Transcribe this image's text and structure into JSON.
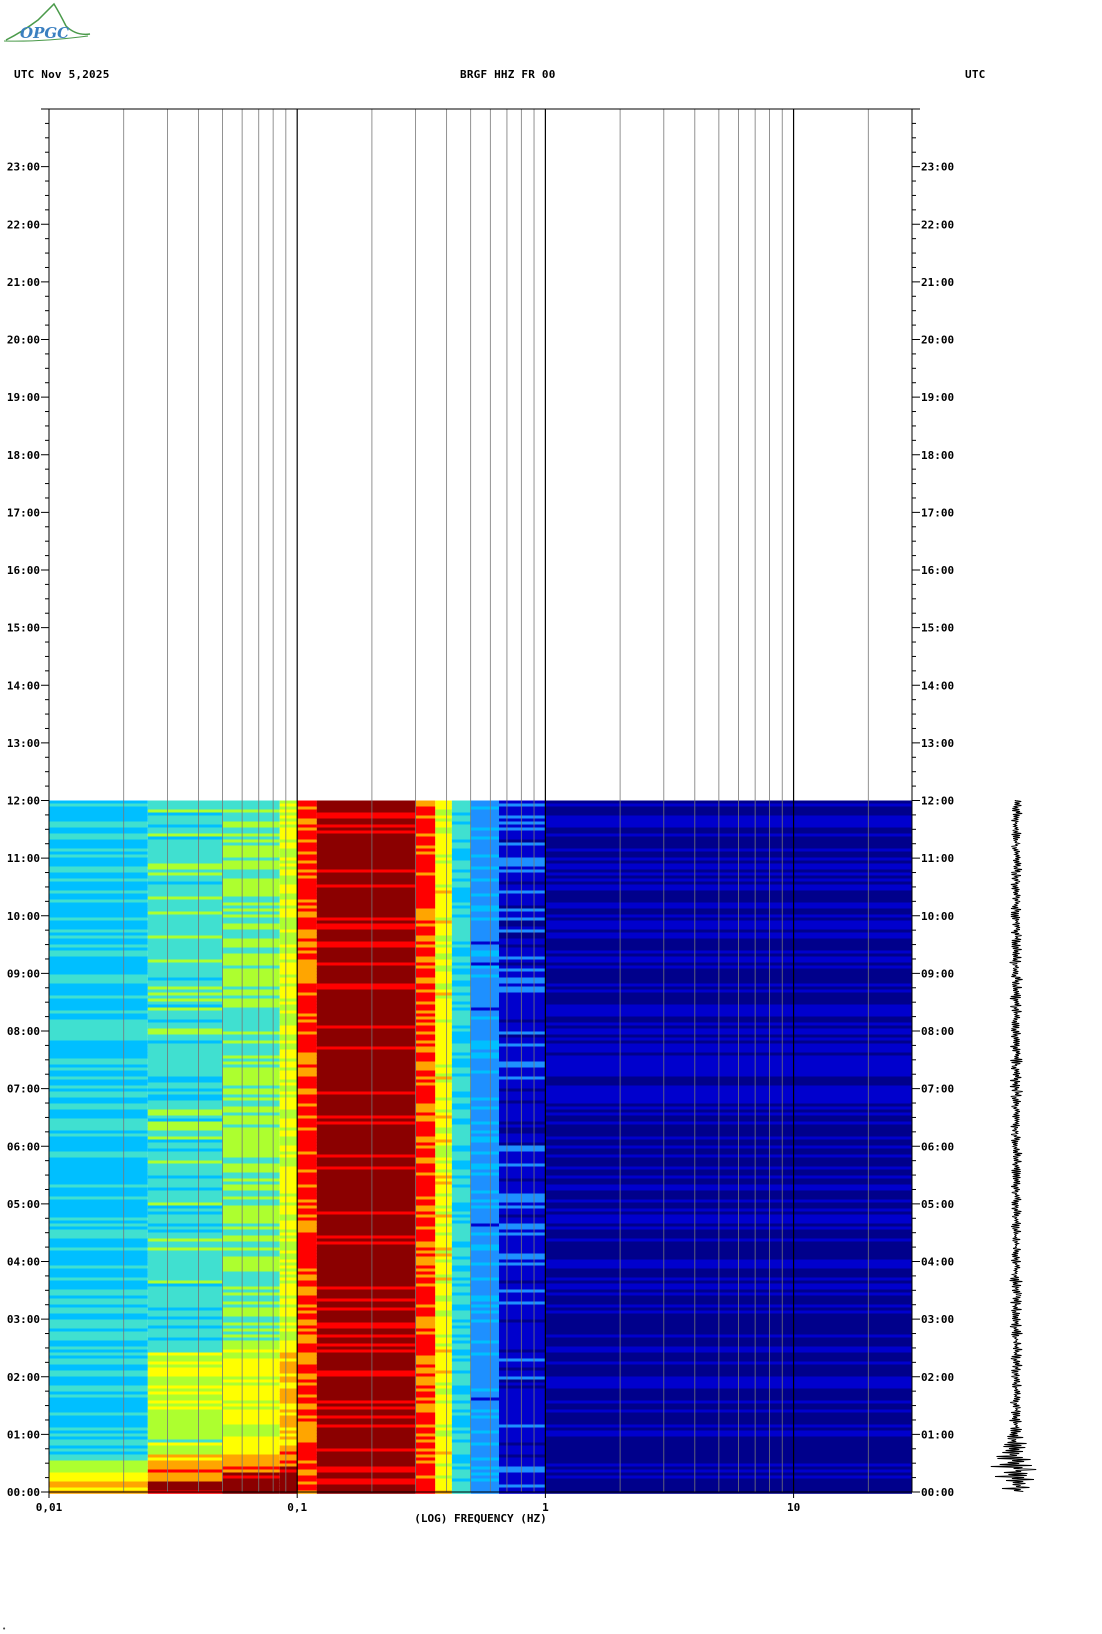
{
  "logo": {
    "text": "OPGC"
  },
  "header": {
    "left": "UTC  Nov 5,2025",
    "center": "BRGF HHZ FR 00",
    "right": "UTC"
  },
  "chart_data": {
    "type": "heatmap",
    "title": "BRGF HHZ FR 00",
    "date": "Nov 5,2025",
    "xlabel": "(LOG) FREQUENCY (HZ)",
    "x_scale": "log",
    "xlim": [
      0.01,
      30
    ],
    "x_tick_labels": [
      "0,01",
      "0,1",
      "1",
      "10"
    ],
    "x_tick_values": [
      0.01,
      0.1,
      1,
      10
    ],
    "ylabel": "UTC",
    "y_tick_labels": [
      "00:00",
      "01:00",
      "02:00",
      "03:00",
      "04:00",
      "05:00",
      "06:00",
      "07:00",
      "08:00",
      "09:00",
      "10:00",
      "11:00",
      "12:00",
      "13:00",
      "14:00",
      "15:00",
      "16:00",
      "17:00",
      "18:00",
      "19:00",
      "20:00",
      "21:00",
      "22:00",
      "23:00"
    ],
    "ylim_hours": [
      0,
      24
    ],
    "data_end_hour": 12,
    "colormap": [
      "#00008b",
      "#0000cd",
      "#1e90ff",
      "#00bfff",
      "#40e0d0",
      "#adff2f",
      "#ffff00",
      "#ffa500",
      "#ff0000",
      "#8b0000"
    ],
    "bands": [
      {
        "f_min": 0.01,
        "f_max": 0.025,
        "level": 0.38
      },
      {
        "f_min": 0.025,
        "f_max": 0.05,
        "level": 0.45
      },
      {
        "f_min": 0.05,
        "f_max": 0.085,
        "level": 0.52
      },
      {
        "f_min": 0.085,
        "f_max": 0.1,
        "level": 0.62
      },
      {
        "f_min": 0.1,
        "f_max": 0.12,
        "level": 0.86
      },
      {
        "f_min": 0.12,
        "f_max": 0.3,
        "level": 1.0
      },
      {
        "f_min": 0.3,
        "f_max": 0.36,
        "level": 0.85
      },
      {
        "f_min": 0.36,
        "f_max": 0.42,
        "level": 0.66
      },
      {
        "f_min": 0.42,
        "f_max": 0.5,
        "level": 0.4
      },
      {
        "f_min": 0.5,
        "f_max": 0.65,
        "level": 0.24
      },
      {
        "f_min": 0.65,
        "f_max": 1.0,
        "level": 0.12
      },
      {
        "f_min": 1.0,
        "f_max": 30,
        "level": 0.04
      }
    ],
    "seismogram": {
      "present": true,
      "hours": [
        0,
        12
      ],
      "event_hour": 0.4
    }
  }
}
